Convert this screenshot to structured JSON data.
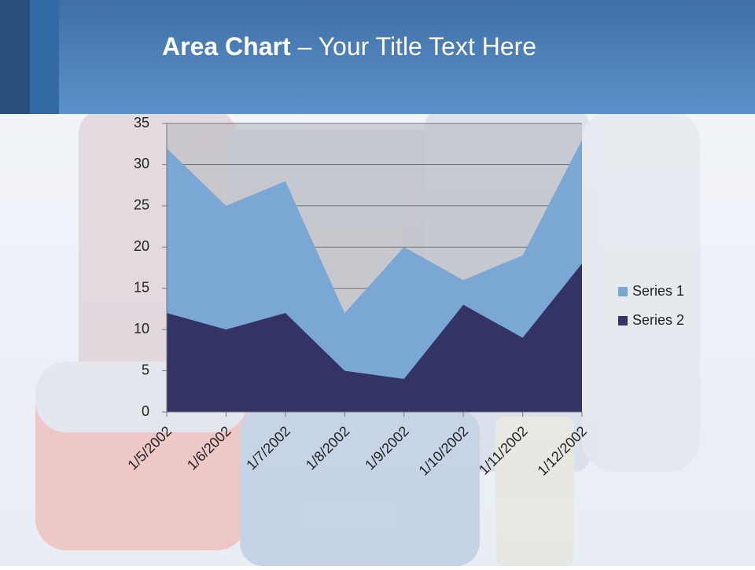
{
  "chart_data": {
    "type": "area",
    "title_bold": "Area Chart",
    "title_rest": "– Your Title Text Here",
    "categories": [
      "1/5/2002",
      "1/6/2002",
      "1/7/2002",
      "1/8/2002",
      "1/9/2002",
      "1/10/2002",
      "1/11/2002",
      "1/12/2002"
    ],
    "series": [
      {
        "name": "Series 1",
        "color": "#7ba7d4",
        "values": [
          32,
          25,
          28,
          12,
          20,
          16,
          19,
          33
        ]
      },
      {
        "name": "Series 2",
        "color": "#333366",
        "values": [
          12,
          10,
          12,
          5,
          4,
          13,
          9,
          18
        ]
      }
    ],
    "ylim": [
      0,
      35
    ],
    "yticks": [
      0,
      5,
      10,
      15,
      20,
      25,
      30,
      35
    ],
    "grid": true,
    "legend": "right"
  }
}
